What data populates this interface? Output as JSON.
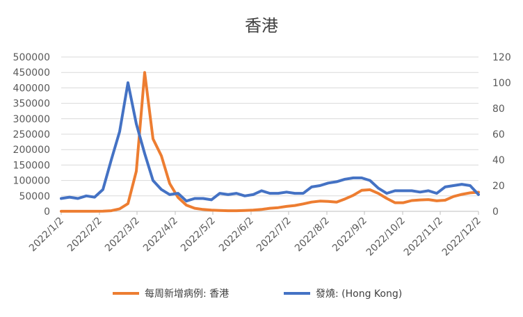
{
  "chart_data": {
    "type": "line",
    "title": "香港",
    "x": [
      "2022/1/2",
      "2022/1/9",
      "2022/1/16",
      "2022/1/23",
      "2022/1/30",
      "2022/2/6",
      "2022/2/13",
      "2022/2/20",
      "2022/2/27",
      "2022/3/6",
      "2022/3/13",
      "2022/3/20",
      "2022/3/27",
      "2022/4/3",
      "2022/4/10",
      "2022/4/17",
      "2022/4/24",
      "2022/5/1",
      "2022/5/8",
      "2022/5/15",
      "2022/5/22",
      "2022/5/29",
      "2022/6/5",
      "2022/6/12",
      "2022/6/19",
      "2022/6/26",
      "2022/7/3",
      "2022/7/10",
      "2022/7/17",
      "2022/7/24",
      "2022/7/31",
      "2022/8/7",
      "2022/8/14",
      "2022/8/21",
      "2022/8/28",
      "2022/9/4",
      "2022/9/11",
      "2022/9/18",
      "2022/9/25",
      "2022/10/2",
      "2022/10/9",
      "2022/10/16",
      "2022/10/23",
      "2022/10/30",
      "2022/11/6",
      "2022/11/13",
      "2022/11/20",
      "2022/11/27",
      "2022/12/4",
      "2022/12/11",
      "2022/12/18"
    ],
    "x_tick_labels": [
      "2022/1/2",
      "2022/2/2",
      "2022/3/2",
      "2022/4/2",
      "2022/5/2",
      "2022/6/2",
      "2022/7/2",
      "2022/8/2",
      "2022/9/2",
      "2022/10/2",
      "2022/11/2",
      "2022/12/2"
    ],
    "y_left": {
      "ticks": [
        0,
        50000,
        100000,
        150000,
        200000,
        250000,
        300000,
        350000,
        400000,
        450000,
        500000
      ],
      "ylim": [
        0,
        500000
      ]
    },
    "y_right": {
      "ticks": [
        0,
        20,
        40,
        60,
        80,
        100,
        120
      ],
      "ylim": [
        0,
        120
      ]
    },
    "series": [
      {
        "name": "每周新增病例:  香港",
        "axis": "left",
        "color": "#ED7D31",
        "values": [
          200,
          300,
          300,
          200,
          300,
          500,
          2000,
          8000,
          25000,
          130000,
          450000,
          235000,
          180000,
          90000,
          45000,
          20000,
          10000,
          6000,
          4000,
          3000,
          2000,
          2000,
          3000,
          4000,
          6000,
          10000,
          12000,
          16000,
          19000,
          24000,
          30000,
          33000,
          32000,
          30000,
          40000,
          52000,
          68000,
          70000,
          58000,
          42000,
          28000,
          28000,
          35000,
          37000,
          38000,
          34000,
          36000,
          48000,
          55000,
          60000,
          62000
        ]
      },
      {
        "name": "發燒: (Hong Kong)",
        "axis": "right",
        "color": "#4472C4",
        "values": [
          10,
          11,
          10,
          12,
          11,
          17,
          40,
          62,
          100,
          68,
          45,
          24,
          17,
          13,
          14,
          8,
          10,
          10,
          9,
          14,
          13,
          14,
          12,
          13,
          16,
          14,
          14,
          15,
          14,
          14,
          19,
          20,
          22,
          23,
          25,
          26,
          26,
          24,
          18,
          14,
          16,
          16,
          16,
          15,
          16,
          14,
          19,
          20,
          21,
          20,
          13
        ]
      }
    ],
    "legend": {
      "position": "bottom"
    },
    "grid": {
      "horizontal": true,
      "color": "#D9D9D9"
    }
  }
}
